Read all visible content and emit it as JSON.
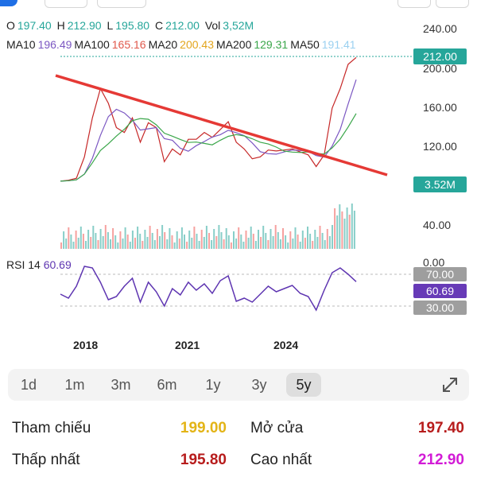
{
  "ohlc": {
    "o_label": "O",
    "o_value": "197.40",
    "h_label": "H",
    "h_value": "212.90",
    "l_label": "L",
    "l_value": "195.80",
    "c_label": "C",
    "c_value": "212.00",
    "vol_label": "Vol",
    "vol_value": "3,52M"
  },
  "moving_averages": [
    {
      "label": "MA10",
      "value": "196.49",
      "color": "#7b57c2"
    },
    {
      "label": "MA100",
      "value": "165.16",
      "color": "#e0584b"
    },
    {
      "label": "MA20",
      "value": "200.43",
      "color": "#e3a51c"
    },
    {
      "label": "MA200",
      "value": "129.31",
      "color": "#3aa64a"
    },
    {
      "label": "MA50",
      "value": "191.41",
      "color": "#9ad0f0"
    }
  ],
  "colors": {
    "up": "#26a69a",
    "down": "#ef5350",
    "ohlc_value": "#26a69a",
    "rsi_line": "#5e35b1",
    "trendline": "#e53935"
  },
  "price_axis": {
    "ticks": [
      "240.00",
      "200.00",
      "160.00",
      "120.00",
      "40.00"
    ]
  },
  "price_badge": "212.00",
  "volume_badge": "3.52M",
  "rsi": {
    "label": "RSI 14",
    "value": "60.69",
    "partial_tick": "0.00",
    "levels": [
      "70.00",
      "30.00"
    ]
  },
  "time_axis": [
    "2018",
    "2021",
    "2024"
  ],
  "timeframes": [
    {
      "label": "1d",
      "active": false
    },
    {
      "label": "1m",
      "active": false
    },
    {
      "label": "3m",
      "active": false
    },
    {
      "label": "6m",
      "active": false
    },
    {
      "label": "1y",
      "active": false
    },
    {
      "label": "3y",
      "active": false
    },
    {
      "label": "5y",
      "active": true
    }
  ],
  "expand_icon": "expand-arrows-icon",
  "stats": [
    {
      "label1": "Tham chiếu",
      "value1": "199.00",
      "color1": "#e3b417",
      "label2": "Mở cửa",
      "value2": "197.40",
      "color2": "#b71c1c"
    },
    {
      "label1": "Thấp nhất",
      "value1": "195.80",
      "color1": "#b71c1c",
      "label2": "Cao nhất",
      "value2": "212.90",
      "color2": "#d21bd6"
    }
  ],
  "chart_data": {
    "type": "line",
    "x": [
      "2017-01",
      "2017-06",
      "2017-09",
      "2017-11",
      "2018-01",
      "2018-04",
      "2018-07",
      "2018-10",
      "2019-01",
      "2019-04",
      "2019-07",
      "2019-10",
      "2020-01",
      "2020-04",
      "2020-07",
      "2020-10",
      "2021-01",
      "2021-04",
      "2021-07",
      "2021-10",
      "2022-01",
      "2022-04",
      "2022-07",
      "2022-10",
      "2023-01",
      "2023-04",
      "2023-07",
      "2023-10",
      "2024-01",
      "2024-04",
      "2024-07",
      "2024-10",
      "2025-01",
      "2025-04",
      "2025-06",
      "2025-08",
      "2025-09",
      "2025-10"
    ],
    "series": [
      {
        "name": "",
        "values": [
          85,
          86,
          88,
          110,
          150,
          180,
          165,
          140,
          135,
          150,
          125,
          145,
          140,
          105,
          118,
          112,
          128,
          128,
          135,
          130,
          138,
          146,
          125,
          118,
          108,
          110,
          117,
          116,
          117,
          118,
          115,
          112,
          100,
          112,
          160,
          180,
          205,
          212
        ]
      }
    ],
    "rsi_values": [
      45,
      40,
      55,
      80,
      78,
      60,
      38,
      42,
      55,
      65,
      35,
      60,
      48,
      30,
      52,
      44,
      60,
      50,
      58,
      46,
      62,
      68,
      36,
      40,
      35,
      45,
      55,
      48,
      52,
      56,
      46,
      42,
      25,
      50,
      72,
      78,
      70,
      60.69
    ],
    "ylim": [
      40,
      240
    ],
    "rsi_levels": [
      30,
      70
    ]
  }
}
